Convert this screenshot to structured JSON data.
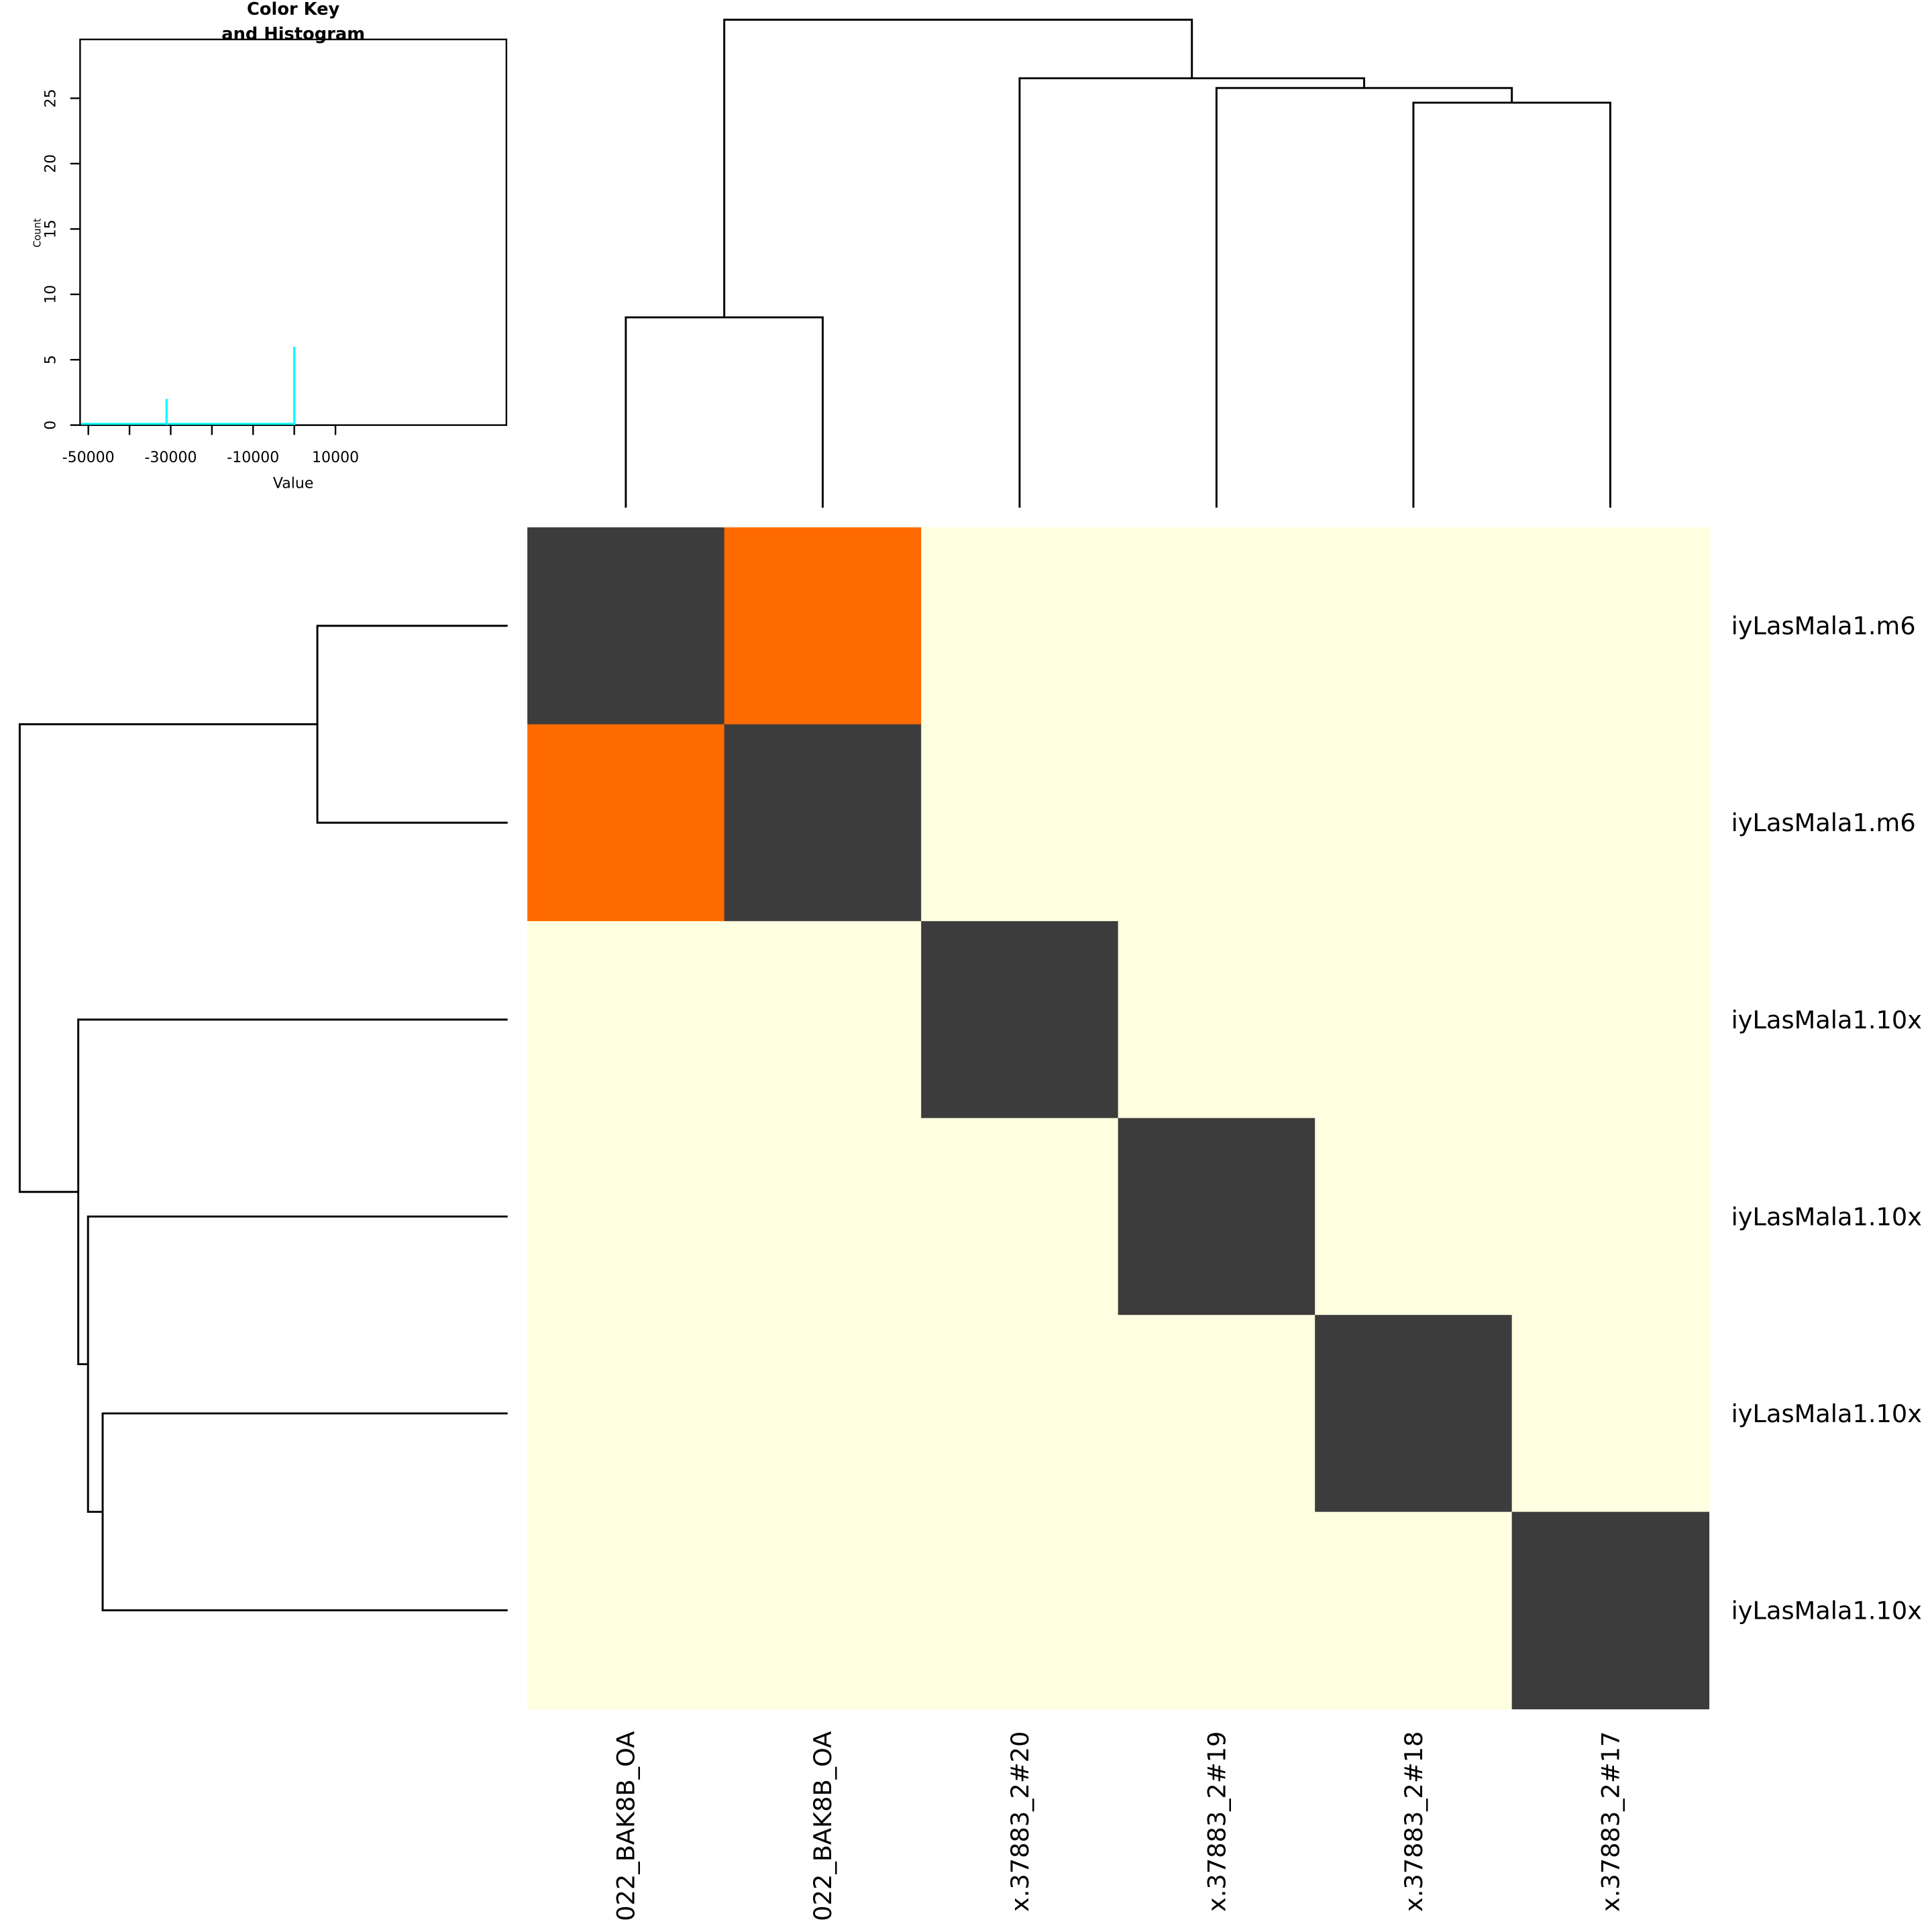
{
  "chart_data": [
    {
      "type": "heatmap",
      "row_labels": [
        "iyLasMala1.m6",
        "iyLasMala1.m6",
        "iyLasMala1.10x",
        "iyLasMala1.10x",
        "iyLasMala1.10x",
        "iyLasMala1.10x"
      ],
      "col_labels": [
        "022_BAK8B_OA",
        "022_BAK8B_OA",
        "x.37883_2#20",
        "x.37883_2#19",
        "x.37883_2#18",
        "x.37883_2#17"
      ],
      "cells": [
        [
          "dark",
          "orange",
          "light",
          "light",
          "light",
          "light"
        ],
        [
          "orange",
          "dark",
          "light",
          "light",
          "light",
          "light"
        ],
        [
          "light",
          "light",
          "dark",
          "light",
          "light",
          "light"
        ],
        [
          "light",
          "light",
          "light",
          "dark",
          "light",
          "light"
        ],
        [
          "light",
          "light",
          "light",
          "light",
          "dark",
          "light"
        ],
        [
          "light",
          "light",
          "light",
          "light",
          "light",
          "dark"
        ]
      ],
      "colors": {
        "dark": "#3c3c3c",
        "orange": "#ff6a00",
        "light": "#fefee0"
      },
      "col_dendrogram": {
        "merges": [
          [
            0,
            1,
            0.0
          ],
          [
            4,
            5,
            0.0
          ],
          [
            3,
            "m2",
            0.0
          ],
          [
            2,
            "m3",
            0.0
          ],
          [
            "m1",
            "m4",
            0.0
          ]
        ],
        "heights_relative": [
          0.39,
          0.83,
          0.86,
          0.88,
          1.0
        ]
      },
      "row_dendrogram": {
        "heights_relative": [
          0.39,
          0.83,
          0.86,
          0.88,
          1.0
        ]
      }
    },
    {
      "type": "histogram",
      "title": "Color Key\nand Histogram",
      "title_lines": [
        "Color Key",
        "and Histogram"
      ],
      "xlabel": "Value",
      "ylabel": "Count",
      "x_ticks": [
        -50000,
        -40000,
        -30000,
        -20000,
        -10000,
        0,
        10000
      ],
      "x_tick_labels": [
        "-50000",
        "-30000",
        "-10000",
        "10000"
      ],
      "y_ticks": [
        0,
        5,
        10,
        15,
        20,
        25
      ],
      "y_tick_labels": [
        "0",
        "5",
        "10",
        "15",
        "20",
        "25"
      ],
      "xlim": [
        -52000,
        51500
      ],
      "ylim": [
        0,
        29.5
      ],
      "bars": [
        {
          "x": -31000,
          "count": 2
        },
        {
          "x": 0,
          "count": 6
        }
      ],
      "line_color": "#00ffff"
    }
  ]
}
